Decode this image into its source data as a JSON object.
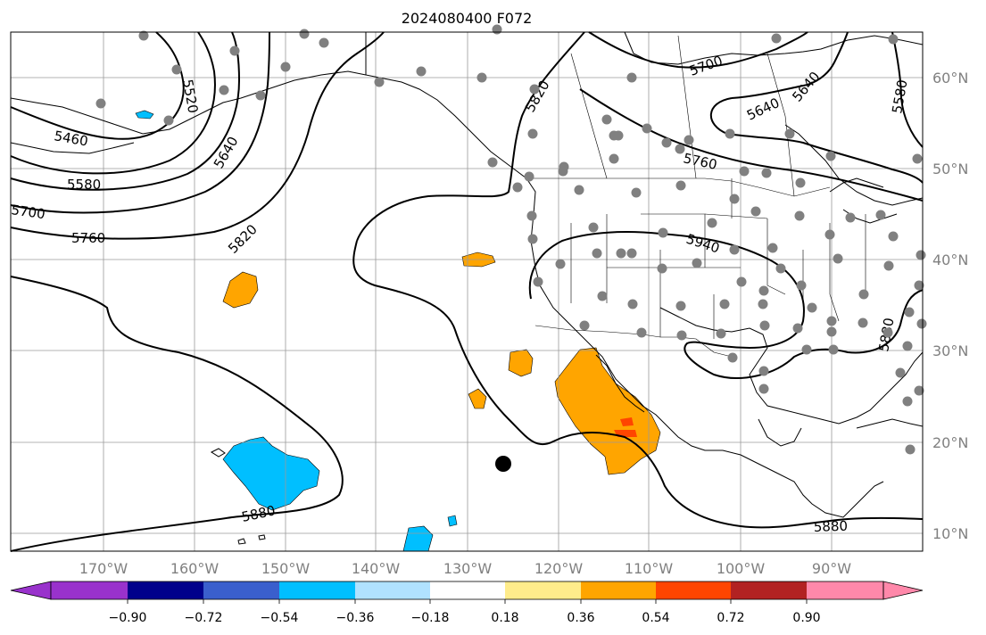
{
  "title": "2024080400 F072",
  "map": {
    "lon_labels": [
      "170°W",
      "160°W",
      "150°W",
      "140°W",
      "130°W",
      "120°W",
      "110°W",
      "100°W",
      "90°W"
    ],
    "lat_labels": [
      "60°N",
      "50°N",
      "40°N",
      "30°N",
      "20°N",
      "10°N"
    ],
    "contour_labels": [
      "5460",
      "5520",
      "5580",
      "5640",
      "5700",
      "5760",
      "5820",
      "5940",
      "5820",
      "5760",
      "5700",
      "5640",
      "5640",
      "5580",
      "5880",
      "5880",
      "5880"
    ],
    "gridlines": true,
    "marker": "storm-center-dot",
    "station-markers": "gray-dots"
  },
  "colorbar": {
    "tick_labels": [
      "−0.90",
      "−0.72",
      "−0.54",
      "−0.36",
      "−0.18",
      "0.18",
      "0.36",
      "0.54",
      "0.72",
      "0.90"
    ],
    "colors": [
      "#9932cc",
      "#00008b",
      "#3a5fcd",
      "#00bfff",
      "#b0e2ff",
      "#ffffff",
      "#ffec8b",
      "#ffa500",
      "#ff4500",
      "#b22222",
      "#ff88aa",
      "#ff88aa"
    ]
  },
  "chart_data": {
    "type": "heatmap",
    "title": "2024080400 F072",
    "xlabel": "",
    "ylabel": "",
    "xlim": [
      "180°W",
      "80°W"
    ],
    "ylim": [
      "8°N",
      "65°N"
    ],
    "colorbar_levels": [
      -0.9,
      -0.72,
      -0.54,
      -0.36,
      -0.18,
      0.18,
      0.36,
      0.54,
      0.72,
      0.9
    ]
  }
}
